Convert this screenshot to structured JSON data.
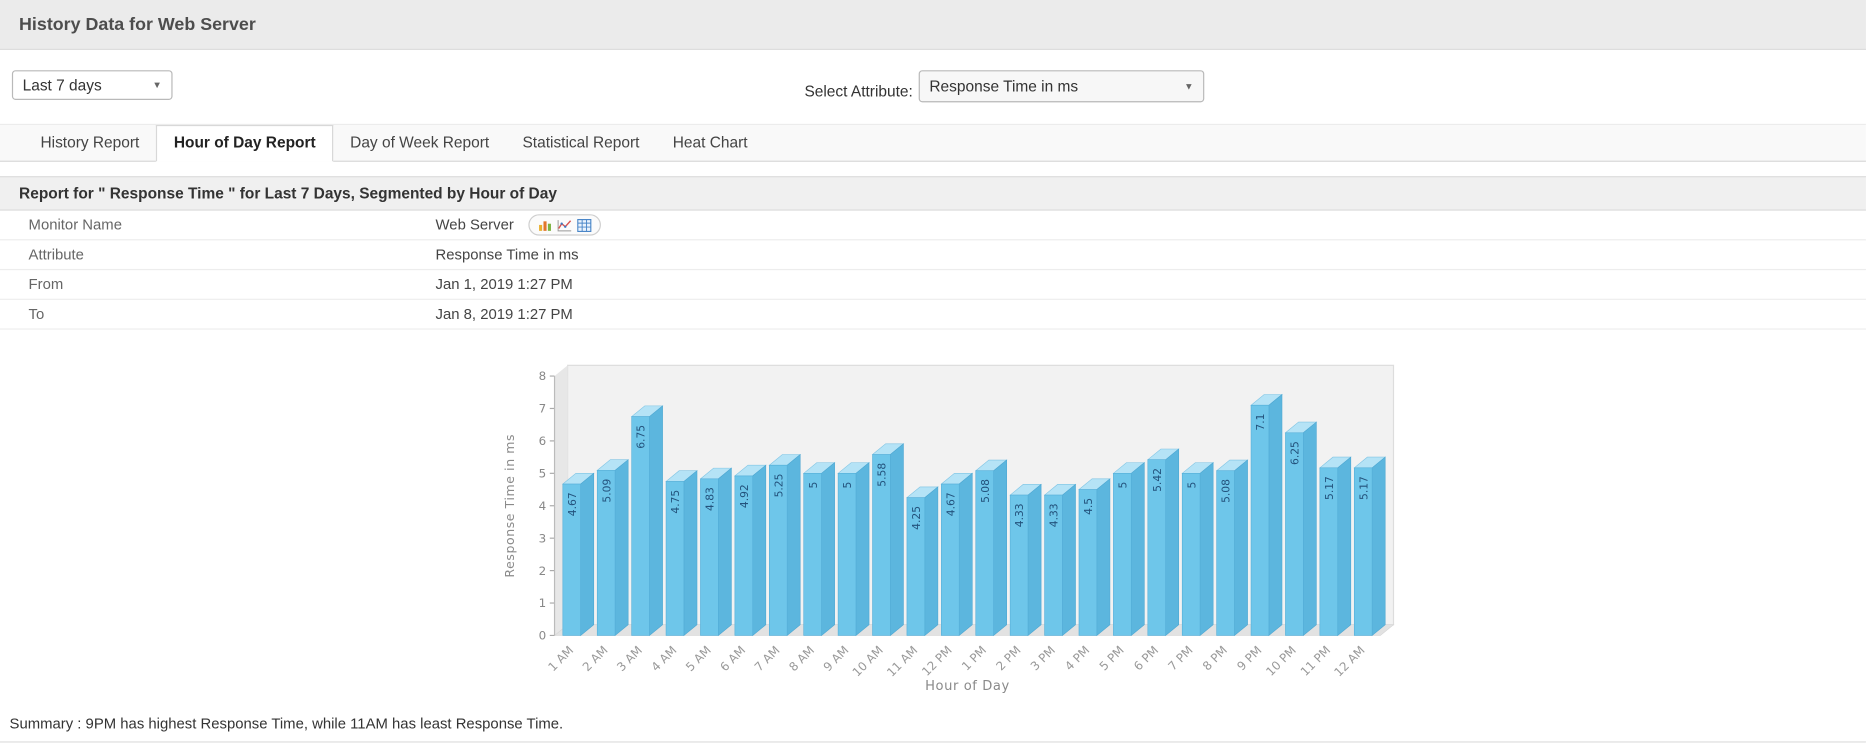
{
  "header": {
    "title": "History Data for Web Server"
  },
  "controls": {
    "period_select": {
      "value": "Last 7 days"
    },
    "attribute_label": "Select Attribute:",
    "attribute_select": {
      "value": "Response Time in ms"
    }
  },
  "icons": {
    "chevron_down": "▼"
  },
  "tabs": [
    {
      "label": "History Report"
    },
    {
      "label": "Hour of Day Report"
    },
    {
      "label": "Day of Week Report"
    },
    {
      "label": "Statistical Report"
    },
    {
      "label": "Heat Chart"
    }
  ],
  "report": {
    "title": "Report for \" Response Time \" for Last 7 Days, Segmented by Hour of Day",
    "rows": [
      {
        "label": "Monitor Name",
        "value": "Web Server"
      },
      {
        "label": "Attribute",
        "value": "Response Time in ms"
      },
      {
        "label": "From",
        "value": "Jan 1, 2019 1:27 PM"
      },
      {
        "label": "To",
        "value": "Jan 8, 2019 1:27 PM"
      }
    ]
  },
  "chart_data": {
    "type": "bar",
    "categories": [
      "1 AM",
      "2 AM",
      "3 AM",
      "4 AM",
      "5 AM",
      "6 AM",
      "7 AM",
      "8 AM",
      "9 AM",
      "10 AM",
      "11 AM",
      "12 PM",
      "1 PM",
      "2 PM",
      "3 PM",
      "4 PM",
      "5 PM",
      "6 PM",
      "7 PM",
      "8 PM",
      "9 PM",
      "10 PM",
      "11 PM",
      "12 AM"
    ],
    "values": [
      4.67,
      5.09,
      6.75,
      4.75,
      4.83,
      4.92,
      5.25,
      5,
      5,
      5.58,
      4.25,
      4.67,
      5.08,
      4.33,
      4.33,
      4.5,
      5,
      5.42,
      5,
      5.08,
      7.1,
      6.25,
      5.17,
      5.17
    ],
    "title": "",
    "xlabel": "Hour of Day",
    "ylabel": "Response Time in ms",
    "ylim": [
      0,
      8
    ],
    "grid": false,
    "legend": "none",
    "bar_color": "#6ec6ea",
    "bar_top_color": "#b5e3f6",
    "bar_side_color": "#5cb6de",
    "label_color": "#23527c"
  },
  "summary": "Summary : 9PM has highest Response Time, while 11AM has least Response Time."
}
